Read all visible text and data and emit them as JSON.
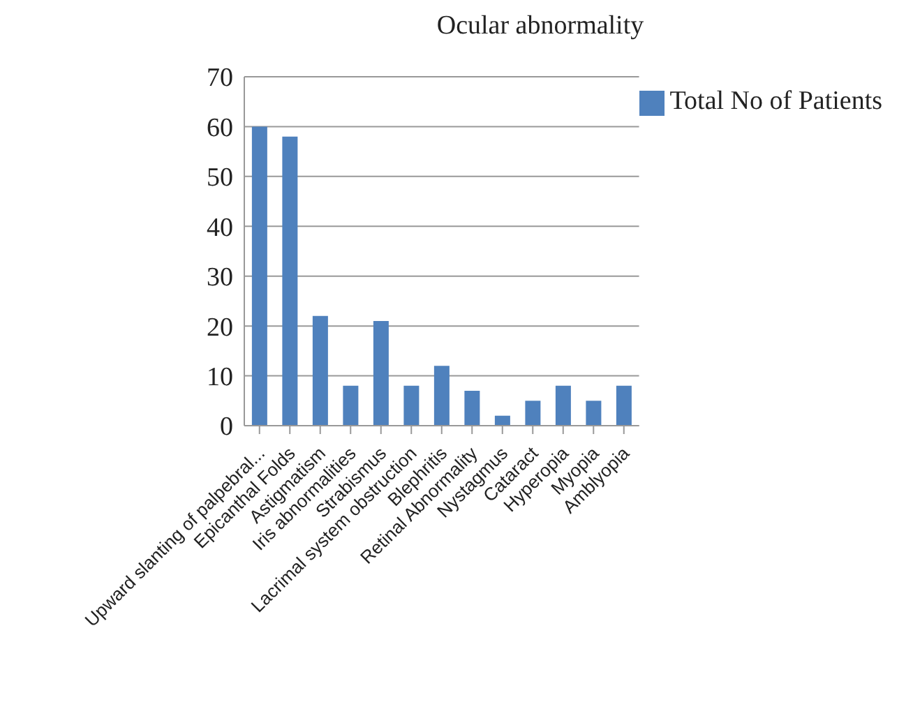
{
  "chart_data": {
    "type": "bar",
    "title": "Ocular abnormality",
    "categories": [
      "Upward slanting of palpebral...",
      "Epicanthal Folds",
      "Astigmatism",
      "Iris abnormalities",
      "Strabismus",
      "Lacrimal system obstruction",
      "Blephritis",
      "Retinal Abnormality",
      "Nystagmus",
      "Cataract",
      "Hyperopia",
      "Myopia",
      "Amblyopia"
    ],
    "series": [
      {
        "name": "Total No of Patients",
        "color": "#4f81bd",
        "values": [
          60,
          58,
          22,
          8,
          21,
          8,
          12,
          7,
          2,
          5,
          8,
          5,
          8
        ]
      }
    ],
    "ylim": [
      0,
      70
    ],
    "yticks": [
      0,
      10,
      20,
      30,
      40,
      50,
      60,
      70
    ],
    "grid": "y",
    "legend": "top right"
  }
}
